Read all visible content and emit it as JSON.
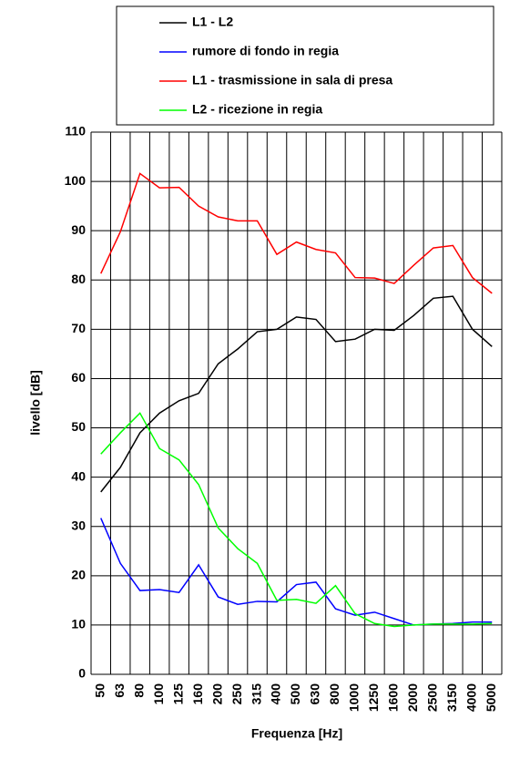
{
  "chart_data": {
    "type": "line",
    "xlabel": "Frequenza [Hz]",
    "ylabel": "livello [dB]",
    "categories": [
      "50",
      "63",
      "80",
      "100",
      "125",
      "160",
      "200",
      "250",
      "315",
      "400",
      "500",
      "630",
      "800",
      "1000",
      "1250",
      "1600",
      "2000",
      "2500",
      "3150",
      "4000",
      "5000"
    ],
    "series": [
      {
        "name": "L1 - L2",
        "color": "#000000",
        "values": [
          37,
          42,
          49,
          53,
          55.5,
          57,
          63,
          66,
          69.5,
          70,
          72.5,
          72,
          67.5,
          68,
          70,
          69.8,
          72.8,
          76.3,
          76.7,
          70,
          66.5
        ]
      },
      {
        "name": "rumore di fondo in regia",
        "color": "#0000ff",
        "values": [
          31.7,
          22.5,
          17,
          17.2,
          16.6,
          22.2,
          15.7,
          14.2,
          14.8,
          14.7,
          18.2,
          18.7,
          13.3,
          12,
          12.6,
          11.3,
          10,
          10.2,
          10.3,
          10.6,
          10.6
        ]
      },
      {
        "name": "L1 - trasmissione in sala di presa",
        "color": "#ff0000",
        "values": [
          81.3,
          89.8,
          101.6,
          98.7,
          98.8,
          95,
          92.8,
          92,
          92,
          85.2,
          87.7,
          86.2,
          85.5,
          80.5,
          80.4,
          79.3,
          83,
          86.5,
          87,
          80.5,
          77.3
        ]
      },
      {
        "name": "L2 - ricezione in regia",
        "color": "#00ff00",
        "values": [
          44.7,
          49,
          53,
          45.8,
          43.5,
          38.5,
          29.7,
          25.5,
          22.5,
          15,
          15.2,
          14.4,
          18,
          12.3,
          10.3,
          9.7,
          10,
          10.2,
          10.2,
          10.2,
          10.3
        ]
      }
    ],
    "ylim": [
      0,
      110
    ],
    "yticks": [
      0,
      10,
      20,
      30,
      40,
      50,
      60,
      70,
      80,
      90,
      100,
      110
    ],
    "grid": true
  }
}
